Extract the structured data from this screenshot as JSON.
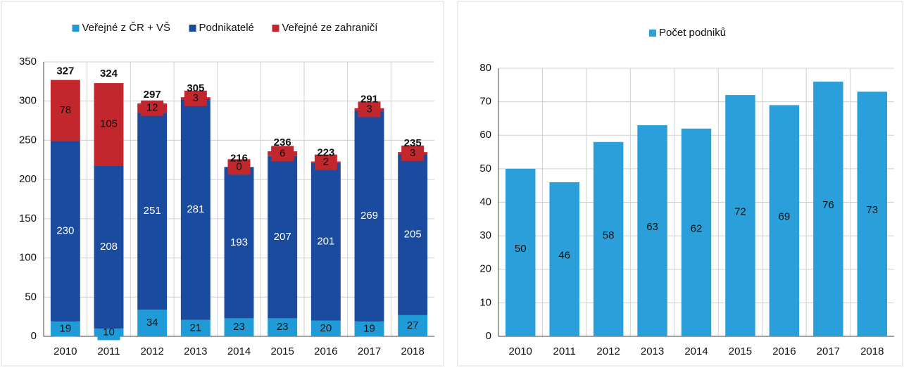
{
  "chart_data": [
    {
      "type": "stacked_bar",
      "categories": [
        "2010",
        "2011",
        "2012",
        "2013",
        "2014",
        "2015",
        "2016",
        "2017",
        "2018"
      ],
      "series": [
        {
          "name": "Veřejné z ČR + VŠ",
          "color": "#1f9bd7",
          "values": [
            19,
            10,
            34,
            21,
            23,
            23,
            20,
            19,
            27
          ]
        },
        {
          "name": "Podnikatelé",
          "color": "#1b4b9e",
          "values": [
            230,
            208,
            251,
            281,
            193,
            207,
            201,
            269,
            205
          ]
        },
        {
          "name": "Veřejné ze zahraničí",
          "color": "#c1272d",
          "values": [
            78,
            105,
            12,
            3,
            0,
            6,
            2,
            3,
            3
          ]
        }
      ],
      "totals": [
        327,
        324,
        297,
        305,
        216,
        236,
        223,
        291,
        235
      ],
      "ylim": [
        0,
        350
      ],
      "yticks": [
        0,
        50,
        100,
        150,
        200,
        250,
        300,
        350
      ],
      "grid": true,
      "legend": "top"
    },
    {
      "type": "bar",
      "categories": [
        "2010",
        "2011",
        "2012",
        "2013",
        "2014",
        "2015",
        "2016",
        "2017",
        "2018"
      ],
      "series": [
        {
          "name": "Počet podniků",
          "color": "#2a9fd9",
          "values": [
            50,
            46,
            58,
            63,
            62,
            72,
            69,
            76,
            73
          ]
        }
      ],
      "ylim": [
        0,
        80
      ],
      "yticks": [
        0,
        10,
        20,
        30,
        40,
        50,
        60,
        70,
        80
      ],
      "grid": true,
      "legend": "top"
    }
  ]
}
